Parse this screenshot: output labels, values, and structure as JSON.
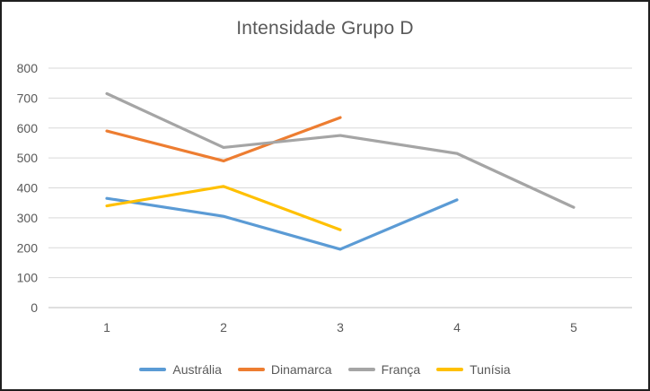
{
  "chart_data": {
    "type": "line",
    "title": "Intensidade Grupo D",
    "categories": [
      "1",
      "2",
      "3",
      "4",
      "5"
    ],
    "series": [
      {
        "name": "Austrália",
        "color": "#5B9BD5",
        "values": [
          365,
          305,
          195,
          360,
          null
        ]
      },
      {
        "name": "Dinamarca",
        "color": "#ED7D31",
        "values": [
          590,
          490,
          635,
          null,
          null
        ]
      },
      {
        "name": "França",
        "color": "#A5A5A5",
        "values": [
          715,
          535,
          575,
          515,
          335
        ]
      },
      {
        "name": "Tunísia",
        "color": "#FFC000",
        "values": [
          340,
          405,
          260,
          null,
          null
        ]
      }
    ],
    "xlabel": "",
    "ylabel": "",
    "ylim": [
      0,
      800
    ],
    "ytick_step": 100,
    "grid": true,
    "legend_position": "bottom",
    "grid_color": "#D9D9D9",
    "axis_line_color": "#BFBFBF",
    "axis_text_color": "#595959",
    "title_color": "#595959",
    "background_color": "#FFFFFF",
    "border_color": "#1F1F1F"
  }
}
